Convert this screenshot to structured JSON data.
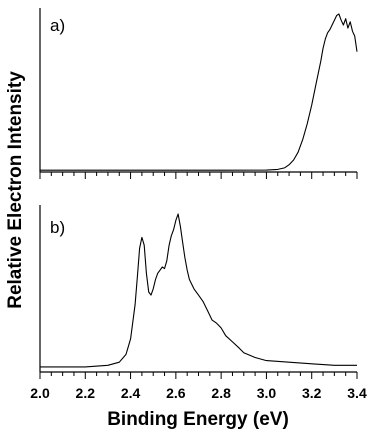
{
  "chart_data": [
    {
      "type": "line",
      "panel_label": "a)",
      "xlim": [
        2.0,
        3.4
      ],
      "ylim": [
        0,
        1.0
      ],
      "series": [
        {
          "x": [
            2.0,
            2.4,
            2.8,
            3.0,
            3.05,
            3.08,
            3.1,
            3.12,
            3.14,
            3.16,
            3.18,
            3.2,
            3.22,
            3.24,
            3.25,
            3.26,
            3.27,
            3.28,
            3.29,
            3.3,
            3.31,
            3.32,
            3.33,
            3.34,
            3.35,
            3.36,
            3.37,
            3.38,
            3.39,
            3.4
          ],
          "y": [
            0.005,
            0.005,
            0.005,
            0.006,
            0.01,
            0.02,
            0.04,
            0.07,
            0.12,
            0.2,
            0.3,
            0.42,
            0.56,
            0.7,
            0.78,
            0.84,
            0.88,
            0.9,
            0.93,
            0.96,
            0.99,
            1.0,
            0.96,
            0.93,
            0.97,
            0.91,
            0.95,
            0.89,
            0.86,
            0.76
          ]
        }
      ]
    },
    {
      "type": "line",
      "panel_label": "b)",
      "xlim": [
        2.0,
        3.4
      ],
      "ylim": [
        0,
        1.0
      ],
      "series": [
        {
          "x": [
            2.0,
            2.1,
            2.2,
            2.3,
            2.35,
            2.38,
            2.4,
            2.42,
            2.43,
            2.44,
            2.45,
            2.46,
            2.47,
            2.48,
            2.49,
            2.5,
            2.51,
            2.52,
            2.53,
            2.54,
            2.55,
            2.56,
            2.57,
            2.58,
            2.59,
            2.6,
            2.61,
            2.62,
            2.63,
            2.64,
            2.65,
            2.66,
            2.68,
            2.7,
            2.72,
            2.74,
            2.76,
            2.78,
            2.8,
            2.82,
            2.85,
            2.88,
            2.9,
            2.95,
            3.0,
            3.1,
            3.2,
            3.3,
            3.4
          ],
          "y": [
            0.02,
            0.02,
            0.02,
            0.03,
            0.05,
            0.1,
            0.2,
            0.42,
            0.6,
            0.78,
            0.85,
            0.8,
            0.62,
            0.5,
            0.48,
            0.52,
            0.58,
            0.62,
            0.64,
            0.66,
            0.65,
            0.7,
            0.8,
            0.86,
            0.9,
            0.96,
            1.0,
            0.92,
            0.82,
            0.72,
            0.64,
            0.58,
            0.52,
            0.48,
            0.44,
            0.38,
            0.32,
            0.3,
            0.27,
            0.22,
            0.18,
            0.14,
            0.11,
            0.08,
            0.06,
            0.05,
            0.04,
            0.03,
            0.03
          ]
        }
      ]
    }
  ],
  "axes": {
    "xlabel": "Binding Energy (eV)",
    "ylabel": "Relative Electron Intensity",
    "xticks": [
      "2.0",
      "2.2",
      "2.4",
      "2.6",
      "2.8",
      "3.0",
      "3.2",
      "3.4"
    ]
  }
}
